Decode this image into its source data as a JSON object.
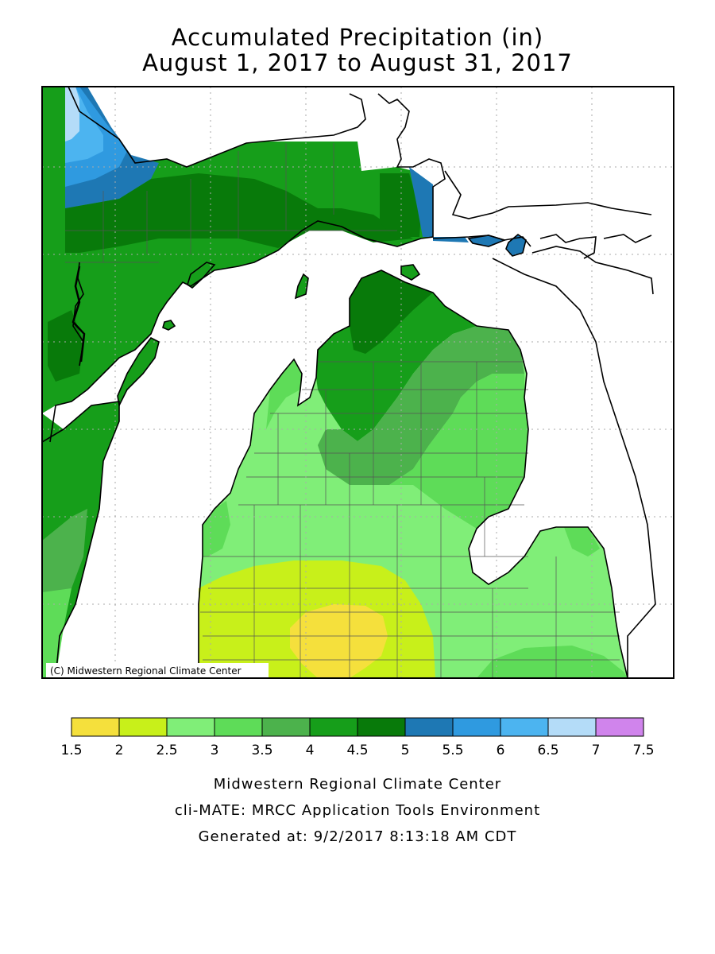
{
  "title": {
    "line1": "Accumulated Precipitation (in)",
    "line2": "August 1, 2017 to August 31, 2017"
  },
  "map": {
    "region": "Michigan",
    "copyright": "(C) Midwestern Regional Climate Center",
    "colors": {
      "1.5-2": "#f5e03c",
      "2-2.5": "#c8f01a",
      "2.5-3": "#80ee78",
      "3-3.5": "#5edc58",
      "3.5-4": "#4cb24c",
      "4-4.5": "#169e1a",
      "4.5-5": "#087a0a",
      "5-5.5": "#1e78b4",
      "5.5-6": "#2f9ae0",
      "6-6.5": "#4cb4f0",
      "6.5-7": "#b4dcf8",
      "7-7.5": "#d084ec"
    }
  },
  "legend": {
    "labels": [
      "1.5",
      "2",
      "2.5",
      "3",
      "3.5",
      "4",
      "4.5",
      "5",
      "5.5",
      "6",
      "6.5",
      "7",
      "7.5"
    ],
    "colors": [
      "#f5e03c",
      "#c8f01a",
      "#80ee78",
      "#5edc58",
      "#4cb24c",
      "#169e1a",
      "#087a0a",
      "#1e78b4",
      "#2f9ae0",
      "#4cb4f0",
      "#b4dcf8",
      "#d084ec"
    ]
  },
  "credits": {
    "line1": "Midwestern Regional Climate Center",
    "line2": "cli-MATE: MRCC Application Tools Environment",
    "line3": "Generated at: 9/2/2017 8:13:18 AM CDT"
  }
}
